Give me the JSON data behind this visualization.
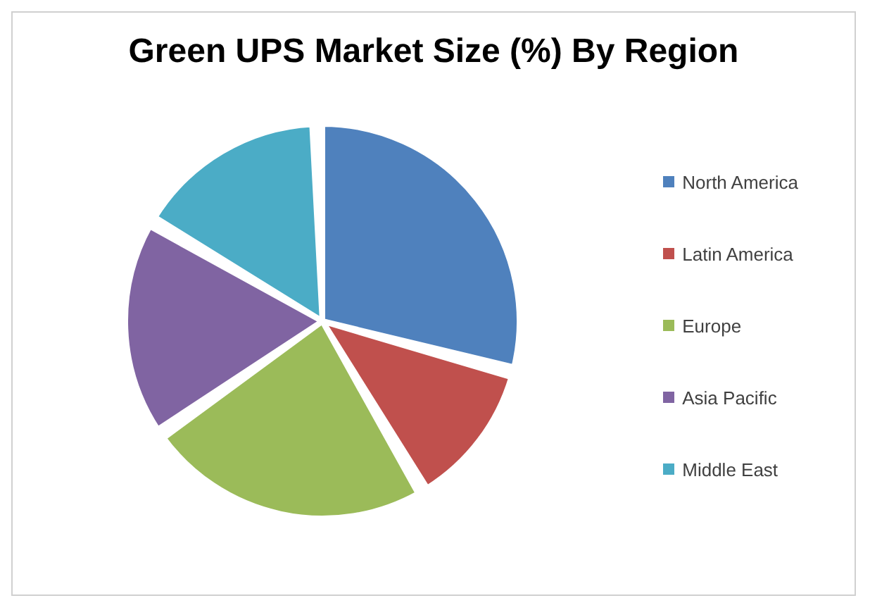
{
  "chart_data": {
    "type": "pie",
    "title": "Green UPS Market Size (%) By Region",
    "categories": [
      "North America",
      "Latin America",
      "Europe",
      "Asia Pacific",
      "Middle East"
    ],
    "values": [
      30,
      12,
      24,
      18,
      16
    ],
    "colors": [
      "#4f81bd",
      "#c0504d",
      "#9bbb59",
      "#8064a2",
      "#4bacc6"
    ],
    "legend": "right"
  }
}
